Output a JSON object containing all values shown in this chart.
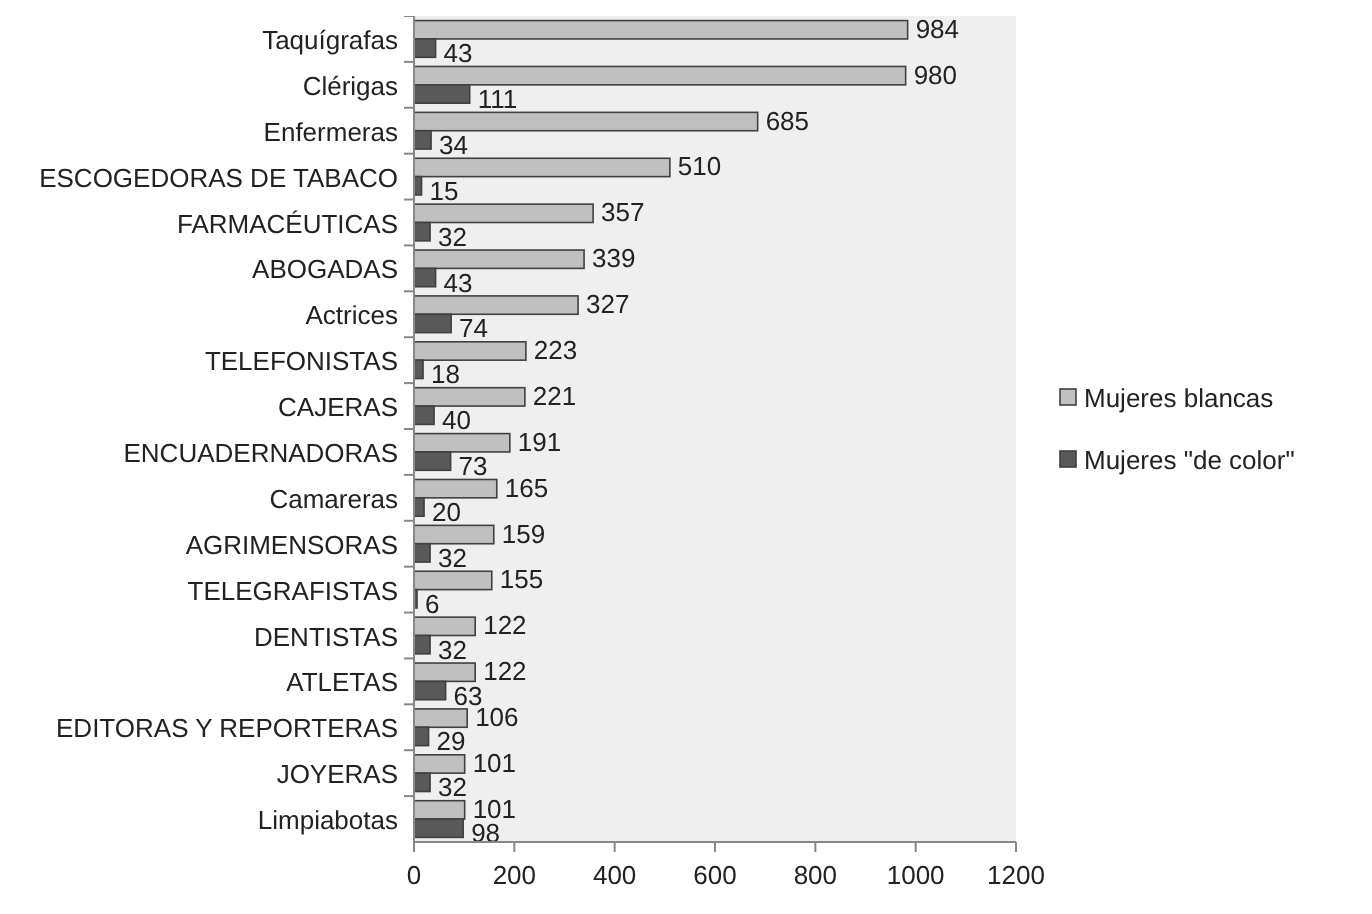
{
  "chart_data": {
    "type": "bar",
    "orientation": "horizontal",
    "categories": [
      "Taquígrafas",
      "Clérigas",
      "Enfermeras",
      "ESCOGEDORAS DE TABACO",
      "FARMACÉUTICAS",
      "ABOGADAS",
      "Actrices",
      "TELEFONISTAS",
      "CAJERAS",
      "ENCUADERNADORAS",
      "Camareras",
      "AGRIMENSORAS",
      "TELEGRAFISTAS",
      "DENTISTAS",
      "ATLETAS",
      "EDITORAS Y REPORTERAS",
      "JOYERAS",
      "Limpiabotas"
    ],
    "series": [
      {
        "name": "Mujeres blancas",
        "color": "#c0c0c0",
        "values": [
          984,
          980,
          685,
          510,
          357,
          339,
          327,
          223,
          221,
          191,
          165,
          159,
          155,
          122,
          122,
          106,
          101,
          101
        ]
      },
      {
        "name": "Mujeres \"de color\"",
        "color": "#595959",
        "values": [
          43,
          111,
          34,
          15,
          32,
          43,
          74,
          18,
          40,
          73,
          20,
          32,
          6,
          32,
          63,
          29,
          32,
          98
        ]
      }
    ],
    "xlim": [
      0,
      1200
    ],
    "xticks": [
      0,
      200,
      400,
      600,
      800,
      1000,
      1200
    ],
    "data_labels": true,
    "legend": "right",
    "grid": false
  }
}
